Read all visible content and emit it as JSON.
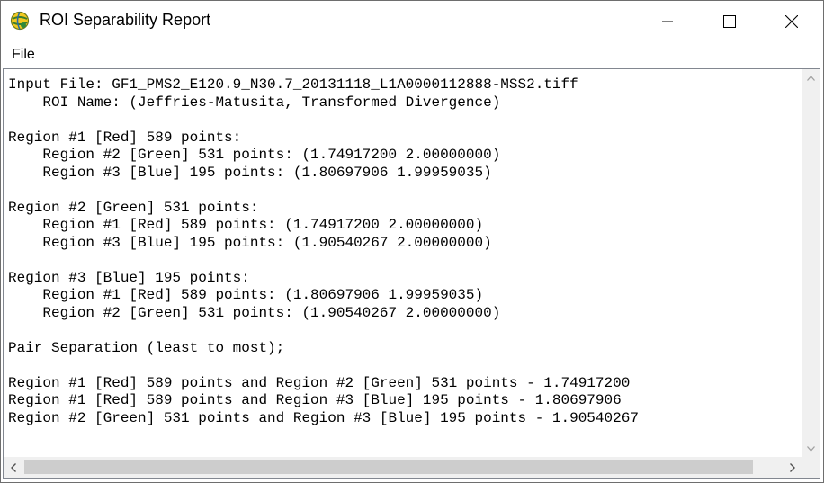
{
  "window": {
    "title": "ROI Separability Report",
    "icon": "envi-globe-icon"
  },
  "menu": {
    "file_label": "File"
  },
  "report_lines": [
    "Input File: GF1_PMS2_E120.9_N30.7_20131118_L1A0000112888-MSS2.tiff",
    "    ROI Name: (Jeffries-Matusita, Transformed Divergence)",
    "",
    "Region #1 [Red] 589 points:",
    "    Region #2 [Green] 531 points: (1.74917200 2.00000000)",
    "    Region #3 [Blue] 195 points: (1.80697906 1.99959035)",
    "",
    "Region #2 [Green] 531 points:",
    "    Region #1 [Red] 589 points: (1.74917200 2.00000000)",
    "    Region #3 [Blue] 195 points: (1.90540267 2.00000000)",
    "",
    "Region #3 [Blue] 195 points:",
    "    Region #1 [Red] 589 points: (1.80697906 1.99959035)",
    "    Region #2 [Green] 531 points: (1.90540267 2.00000000)",
    "",
    "Pair Separation (least to most);",
    "",
    "Region #1 [Red] 589 points and Region #2 [Green] 531 points - 1.74917200",
    "Region #1 [Red] 589 points and Region #3 [Blue] 195 points - 1.80697906",
    "Region #2 [Green] 531 points and Region #3 [Blue] 195 points - 1.90540267"
  ]
}
